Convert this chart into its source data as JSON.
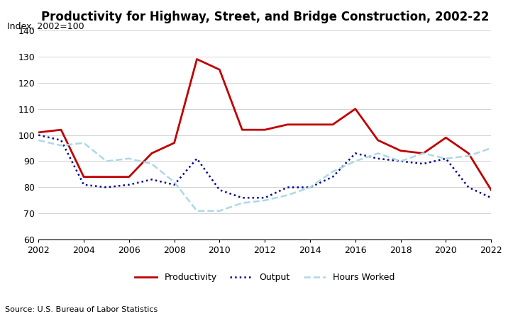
{
  "title": "Productivity for Highway, Street, and Bridge Construction, 2002-22",
  "ylabel": "Index, 2002=100",
  "ylim": [
    60,
    140
  ],
  "yticks": [
    60,
    70,
    80,
    90,
    100,
    110,
    120,
    130,
    140
  ],
  "years": [
    2002,
    2003,
    2004,
    2005,
    2006,
    2007,
    2008,
    2009,
    2010,
    2011,
    2012,
    2013,
    2014,
    2015,
    2016,
    2017,
    2018,
    2019,
    2020,
    2021,
    2022
  ],
  "productivity": [
    101,
    102,
    84,
    84,
    84,
    93,
    97,
    129,
    125,
    102,
    102,
    104,
    104,
    104,
    110,
    98,
    94,
    93,
    99,
    93,
    79
  ],
  "output": [
    100,
    98,
    81,
    80,
    81,
    83,
    81,
    91,
    79,
    76,
    76,
    80,
    80,
    84,
    93,
    91,
    90,
    89,
    91,
    80,
    76
  ],
  "hours_worked": [
    98,
    96,
    97,
    90,
    91,
    89,
    82,
    71,
    71,
    74,
    75,
    77,
    80,
    86,
    90,
    93,
    90,
    93,
    91,
    92,
    95
  ],
  "productivity_color": "#c00000",
  "output_color": "#00008B",
  "hours_color": "#add8e6",
  "source": "Source: U.S. Bureau of Labor Statistics",
  "legend_labels": [
    "Productivity",
    "Output",
    "Hours Worked"
  ],
  "title_fontsize": 12,
  "label_fontsize": 9,
  "tick_fontsize": 9,
  "source_fontsize": 8
}
